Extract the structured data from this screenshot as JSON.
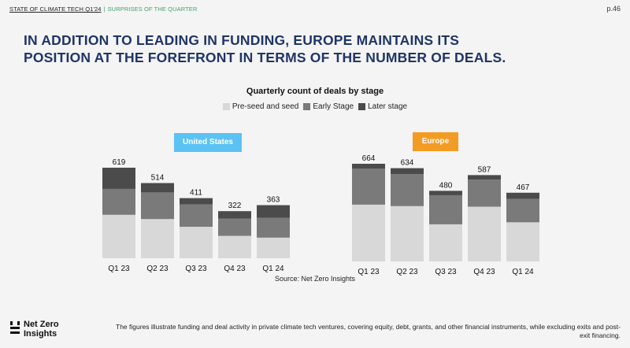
{
  "header": {
    "report": "STATE OF CLIMATE TECH Q1'24",
    "separator": "|",
    "section": "SURPRISES OF THE QUARTER"
  },
  "page_number": "p.46",
  "headline": "IN ADDITION TO LEADING IN FUNDING, EUROPE MAINTAINS ITS POSITION AT THE FOREFRONT IN TERMS OF THE NUMBER OF DEALS.",
  "colors": {
    "pre_seed": "#d8d8d8",
    "early": "#7a7a7a",
    "later": "#4b4b4b",
    "us_badge": "#5bc2f4",
    "eu_badge": "#f39c23",
    "headline": "#1f3566"
  },
  "chart_data": {
    "type": "bar",
    "stacked": true,
    "title": "Quarterly count of deals by stage",
    "legend": [
      "Pre-seed and seed",
      "Early Stage",
      "Later stage"
    ],
    "source": "Source: Net Zero Insights",
    "panels": [
      {
        "name": "United States",
        "categories": [
          "Q1 23",
          "Q2 23",
          "Q3 23",
          "Q4 23",
          "Q1 24"
        ],
        "totals": [
          619,
          514,
          411,
          322,
          363
        ],
        "series": [
          {
            "name": "Pre-seed and seed",
            "values": [
              297,
              268,
              215,
              153,
              141
            ]
          },
          {
            "name": "Early Stage",
            "values": [
              177,
              182,
              153,
              118,
              136
            ]
          },
          {
            "name": "Later stage",
            "values": [
              145,
              64,
              43,
              51,
              86
            ]
          }
        ]
      },
      {
        "name": "Europe",
        "categories": [
          "Q1 23",
          "Q2 23",
          "Q3 23",
          "Q4 23",
          "Q1 24"
        ],
        "totals": [
          664,
          634,
          480,
          587,
          467
        ],
        "series": [
          {
            "name": "Pre-seed and seed",
            "values": [
              386,
              376,
              252,
              372,
              266
            ]
          },
          {
            "name": "Early Stage",
            "values": [
              244,
              218,
              198,
              184,
              159
            ]
          },
          {
            "name": "Later stage",
            "values": [
              34,
              40,
              30,
              31,
              42
            ]
          }
        ]
      }
    ]
  },
  "logo": {
    "line1": "Net Zero",
    "line2": "Insights"
  },
  "footnote": "The figures illustrate funding and deal activity in private climate tech ventures, covering equity, debt, grants, and other financial instruments, while excluding exits and post-exit financing."
}
